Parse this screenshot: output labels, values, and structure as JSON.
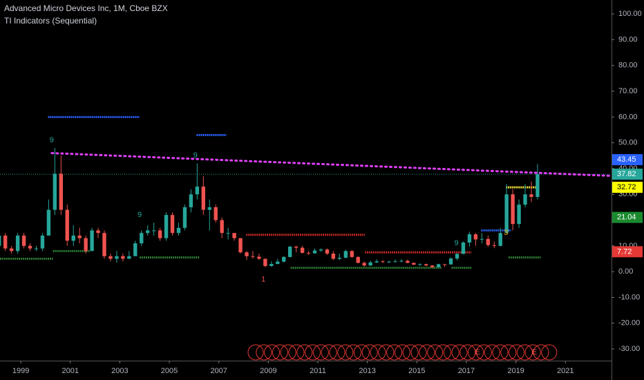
{
  "chart_data": {
    "type": "candlestick",
    "title": "Advanced Micro Devices Inc, 1M, Cboe BZX",
    "subtitle": "TI Indicators (Sequential)",
    "x": [
      1998.125,
      1998.375,
      1998.625,
      1998.875,
      1999.125,
      1999.375,
      1999.625,
      1999.875,
      2000.125,
      2000.375,
      2000.625,
      2000.875,
      2001.125,
      2001.375,
      2001.625,
      2001.875,
      2002.125,
      2002.375,
      2002.625,
      2002.875,
      2003.125,
      2003.375,
      2003.625,
      2003.875,
      2004.125,
      2004.375,
      2004.625,
      2004.875,
      2005.125,
      2005.375,
      2005.625,
      2005.875,
      2006.125,
      2006.375,
      2006.625,
      2006.875,
      2007.125,
      2007.375,
      2007.625,
      2007.875,
      2008.125,
      2008.375,
      2008.625,
      2008.875,
      2009.125,
      2009.375,
      2009.625,
      2009.875,
      2010.125,
      2010.375,
      2010.625,
      2010.875,
      2011.125,
      2011.375,
      2011.625,
      2011.875,
      2012.125,
      2012.375,
      2012.625,
      2012.875,
      2013.125,
      2013.375,
      2013.625,
      2013.875,
      2014.125,
      2014.375,
      2014.625,
      2014.875,
      2015.125,
      2015.375,
      2015.625,
      2015.875,
      2016.125,
      2016.375,
      2016.625,
      2016.875,
      2017.125,
      2017.375,
      2017.625,
      2017.875,
      2018.125,
      2018.375,
      2018.625,
      2018.875,
      2019.125,
      2019.375,
      2019.625,
      2019.875
    ],
    "open": [
      10,
      14,
      9,
      8,
      14,
      10,
      9,
      9,
      14,
      24,
      38,
      24,
      12,
      14,
      13,
      8,
      16,
      15,
      6,
      5,
      6,
      5,
      6,
      11,
      15,
      16,
      16,
      13,
      22,
      15,
      17,
      25,
      30,
      33,
      24,
      25,
      20,
      15,
      15,
      13,
      7.5,
      6,
      5.8,
      5,
      2.2,
      3,
      3.9,
      5.7,
      9.7,
      9.3,
      7.3,
      7.1,
      8.2,
      8.6,
      7,
      5,
      5.4,
      8,
      5.7,
      3.4,
      2.4,
      3.6,
      4,
      3.8,
      3.9,
      4,
      4.2,
      3.4,
      2.7,
      2.9,
      2.4,
      1.7,
      2.9,
      2.8,
      5.1,
      6.9,
      11.3,
      14.5,
      12.5,
      12.7,
      10.3,
      10,
      15,
      30,
      18.5,
      26,
      30,
      29
    ],
    "high": [
      15,
      15,
      10,
      15,
      15,
      11,
      10,
      15,
      28,
      48,
      45,
      26,
      18,
      17,
      14,
      17,
      17,
      16,
      7,
      8,
      7,
      8,
      12,
      16,
      18,
      19,
      17,
      23,
      23,
      19,
      26,
      32,
      42,
      37,
      28,
      26,
      21,
      17,
      15,
      13,
      8,
      8,
      7,
      5,
      4,
      5,
      6,
      10,
      10,
      10,
      8,
      9,
      9,
      9,
      8,
      7,
      8.5,
      8.3,
      6,
      4,
      4.2,
      4.8,
      4.5,
      4.2,
      4.7,
      4.8,
      4.7,
      3.5,
      3.2,
      3.1,
      2.5,
      3.1,
      3,
      5.5,
      7.1,
      11.7,
      15.5,
      15,
      15,
      14,
      11.7,
      17,
      34,
      32,
      28,
      34,
      35,
      41.7
    ],
    "low": [
      9,
      8,
      7,
      7,
      9,
      8,
      8,
      8,
      14,
      22,
      22,
      10,
      10,
      11,
      7,
      8,
      13,
      5,
      4,
      3.5,
      4,
      5,
      6,
      10,
      14,
      14,
      12,
      12,
      14,
      14,
      16,
      23,
      28,
      22,
      16,
      19,
      13,
      12.5,
      12,
      7,
      4.5,
      5,
      4.5,
      1.7,
      1.9,
      2.8,
      3.5,
      5.5,
      7.5,
      7,
      6.5,
      7,
      7.7,
      6.5,
      4.5,
      4.5,
      5.2,
      5.3,
      3.2,
      1.9,
      2.2,
      3.3,
      3.3,
      3.3,
      3.6,
      3.6,
      3.3,
      2.6,
      2.2,
      2.1,
      1.6,
      1.7,
      1.8,
      2.7,
      4.4,
      6.7,
      9.7,
      10,
      11,
      9.7,
      9.1,
      9.8,
      14.7,
      16,
      17,
      25,
      27,
      28
    ],
    "close": [
      14,
      9,
      8,
      14,
      10,
      9,
      9,
      14,
      24,
      38,
      24,
      12,
      14,
      13,
      8,
      16,
      15,
      6,
      5,
      6,
      5,
      6,
      11,
      15,
      16,
      16,
      13,
      22,
      15,
      17,
      25,
      30,
      33,
      24,
      25,
      20,
      15,
      15,
      13,
      7.5,
      6,
      5.8,
      5,
      2.2,
      3,
      3.9,
      5.7,
      9.7,
      9.3,
      7.3,
      7.1,
      8.2,
      8.6,
      7,
      5,
      5.4,
      8,
      5.7,
      3.4,
      2.4,
      3.6,
      4,
      3.8,
      3.9,
      4,
      4.2,
      3.4,
      2.7,
      2.9,
      2.4,
      1.7,
      2.9,
      2.8,
      5.1,
      6.9,
      11.3,
      14.5,
      12.5,
      12.7,
      10.3,
      10,
      15,
      30,
      18.5,
      26,
      30,
      29,
      37.82
    ],
    "up_color": "#26a69a",
    "down_color": "#ef5350",
    "xlim": [
      1998.16,
      2022.78
    ],
    "ylim": [
      -34,
      105.4
    ],
    "xticks": [
      1999,
      2001,
      2003,
      2005,
      2007,
      2009,
      2011,
      2013,
      2015,
      2017,
      2019,
      2021
    ],
    "yticks": [
      {
        "value": -30,
        "label": "-30.00"
      },
      {
        "value": -20,
        "label": "-20.00"
      },
      {
        "value": -10,
        "label": "-10.00"
      },
      {
        "value": 0,
        "label": "0.00"
      },
      {
        "value": 10,
        "label": "10.00"
      },
      {
        "value": 20,
        "label": "20.00"
      },
      {
        "value": 30,
        "label": "30.00"
      },
      {
        "value": 40,
        "label": "40.00"
      },
      {
        "value": 50,
        "label": "50.00"
      },
      {
        "value": 60,
        "label": "60.00"
      },
      {
        "value": 70,
        "label": "70.00"
      },
      {
        "value": 80,
        "label": "80.00"
      },
      {
        "value": 90,
        "label": "90.00"
      },
      {
        "value": 100,
        "label": "100.00"
      }
    ],
    "trendline": {
      "x": [
        2000.25,
        2022.78
      ],
      "values": [
        46,
        37.2
      ],
      "color": "#e040fb"
    },
    "levels": [
      {
        "x": [
          2000.1,
          2003.8
        ],
        "value": 60,
        "color": "#2962ff"
      },
      {
        "x": [
          2006.1,
          2007.3
        ],
        "value": 53,
        "color": "#2962ff"
      },
      {
        "x": [
          1998.16,
          2000.3
        ],
        "value": 5,
        "color": "#2e7d32"
      },
      {
        "x": [
          2000.3,
          2001.8
        ],
        "value": 8,
        "color": "#2e7d32"
      },
      {
        "x": [
          2003.8,
          2006.2
        ],
        "value": 5.5,
        "color": "#2e7d32"
      },
      {
        "x": [
          2008.1,
          2012.9
        ],
        "value": 14.3,
        "color": "#c62828"
      },
      {
        "x": [
          2009.9,
          2016.0
        ],
        "value": 1.5,
        "color": "#2e7d32"
      },
      {
        "x": [
          2012.9,
          2017.2
        ],
        "value": 7.5,
        "color": "#c62828"
      },
      {
        "x": [
          2016.4,
          2017.2
        ],
        "value": 1.5,
        "color": "#2e7d32"
      },
      {
        "x": [
          2017.6,
          2018.8
        ],
        "value": 16,
        "color": "#2962ff"
      },
      {
        "x": [
          2018.7,
          2020.0
        ],
        "value": 5.5,
        "color": "#2e7d32"
      },
      {
        "x": [
          2018.6,
          2019.9
        ],
        "value": 32.72,
        "color": "#ffeb3b"
      }
    ],
    "setup_labels": [
      {
        "x": 2000.25,
        "y": 51,
        "text": "9",
        "color": "#26a69a"
      },
      {
        "x": 2006.05,
        "y": 45,
        "text": "9",
        "color": "#26a69a"
      },
      {
        "x": 2003.8,
        "y": 22,
        "text": "9",
        "color": "#26a69a"
      },
      {
        "x": 2016.6,
        "y": 11,
        "text": "9",
        "color": "#26a69a"
      },
      {
        "x": 2008.8,
        "y": -3,
        "text": "1",
        "color": "#ef5350"
      },
      {
        "x": 2018.6,
        "y": 15,
        "text": "3",
        "color": "#ff9800"
      }
    ],
    "countdown_labels": [
      {
        "x": 2017.45,
        "text": "E"
      },
      {
        "x": 2019.75,
        "text": "E"
      }
    ],
    "price_labels": [
      {
        "value": 43.45,
        "color": "#2962ff",
        "text_color": "#ffffff"
      },
      {
        "value": 37.82,
        "color": "#26a69a",
        "text_color": "#ffffff"
      },
      {
        "value": 32.72,
        "color": "#ffff00",
        "text_color": "#000000"
      },
      {
        "value": 21.04,
        "color": "#1b8a2e",
        "text_color": "#ffffff"
      },
      {
        "value": 7.72,
        "color": "#e53935",
        "text_color": "#ffffff"
      }
    ]
  }
}
